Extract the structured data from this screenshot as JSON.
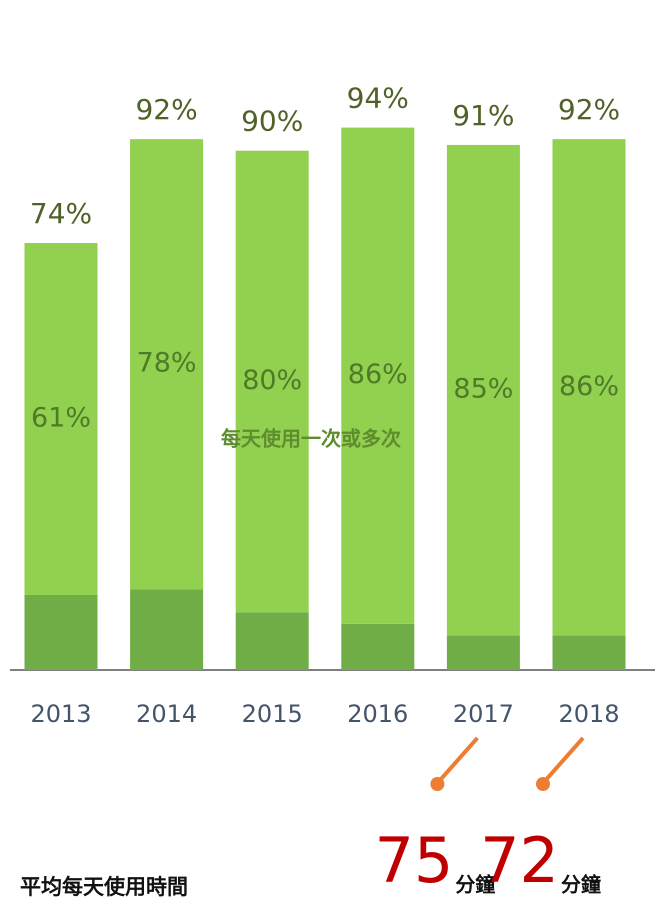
{
  "chart_data": {
    "type": "bar",
    "categories": [
      "2013",
      "2014",
      "2015",
      "2016",
      "2017",
      "2018"
    ],
    "series": [
      {
        "color": "#70ad47",
        "values": [
          13,
          14,
          10,
          8,
          6,
          6
        ]
      },
      {
        "name": "每天使用一次或多次",
        "color": "#92d050",
        "values": [
          61,
          78,
          80,
          86,
          85,
          86
        ],
        "value_labels": [
          "61%",
          "78%",
          "80%",
          "86%",
          "85%",
          "86%"
        ]
      }
    ],
    "totals": [
      74,
      92,
      90,
      94,
      91,
      92
    ],
    "total_labels": [
      "74%",
      "92%",
      "90%",
      "94%",
      "91%",
      "92%"
    ],
    "ylim": [
      0,
      100
    ],
    "stacked": true,
    "average_time": {
      "label": "平均每天使用時間",
      "items": [
        {
          "category": "2017",
          "value": 75,
          "unit": "分鐘"
        },
        {
          "category": "2018",
          "value": 72,
          "unit": "分鐘"
        }
      ]
    }
  }
}
